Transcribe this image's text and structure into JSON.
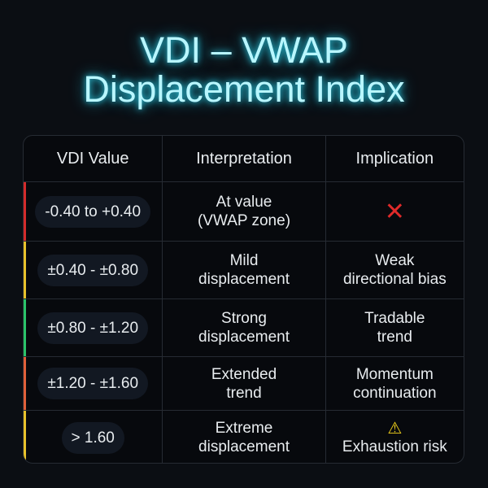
{
  "title": {
    "line1": "VDI – VWAP",
    "line2": "Displacement Index"
  },
  "table": {
    "headers": [
      "VDI Value",
      "Interpretation",
      "Implication"
    ],
    "rows": [
      {
        "value": "-0.40 to +0.40",
        "interp": "At value\n(VWAP zone)",
        "impl": "",
        "icon": "cross-icon",
        "color": "#d42b2b"
      },
      {
        "value": "±0.40 - ±0.80",
        "interp": "Mild\ndisplacement",
        "impl": "Weak\ndirectional bias",
        "color": "#e8c22a"
      },
      {
        "value": "±0.80 - ±1.20",
        "interp": "Strong\ndisplacement",
        "impl": "Tradable\ntrend",
        "color": "#2bc46a"
      },
      {
        "value": "±1.20 - ±1.60",
        "interp": "Extended\ntrend",
        "impl": "Momentum\ncontinuation",
        "color": "#e0603a"
      },
      {
        "value": "> 1.60",
        "interp": "Extreme\ndisplacement",
        "impl": "Exhaustion risk",
        "icon": "warning-icon",
        "color": "#e8c22a"
      }
    ]
  }
}
